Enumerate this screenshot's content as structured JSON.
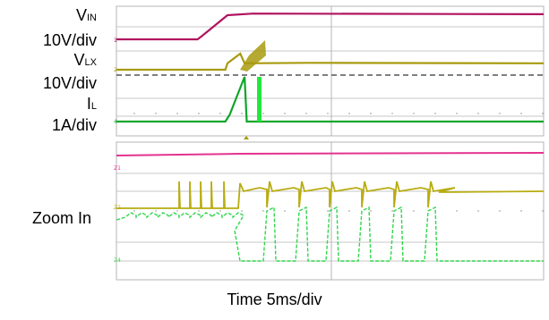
{
  "labels": {
    "vin_main": "V",
    "vin_sub": "IN",
    "vin_scale": "10V/div",
    "vlx_main": "V",
    "vlx_sub": "LX",
    "vlx_scale": "10V/div",
    "il_main": "I",
    "il_sub": "L",
    "il_scale": "1A/div",
    "zoom": "Zoom In",
    "time": "Time 5ms/div"
  },
  "colors": {
    "vin": "#b0135f",
    "vlx": "#a89a0e",
    "il": "#0fa52a",
    "zoom_vin": "#e3338f",
    "zoom_vlx": "#b8ac10",
    "zoom_il": "#2fd64a",
    "grid": "#b4b4b4",
    "ref_dash": "#333333"
  },
  "chart_data": [
    {
      "type": "line",
      "panel": "overview",
      "x_unit": "div (5ms/div)",
      "series": [
        {
          "name": "VIN",
          "scale": "10V/div",
          "points": [
            [
              0,
              0
            ],
            [
              1.9,
              0
            ],
            [
              2.0,
              0.1
            ],
            [
              2.6,
              0.75
            ],
            [
              3.2,
              0.8
            ],
            [
              10,
              0.78
            ]
          ]
        },
        {
          "name": "VLX",
          "scale": "10V/div",
          "points": [
            [
              0,
              0
            ],
            [
              2.55,
              0
            ],
            [
              2.6,
              0.3
            ],
            [
              2.9,
              0.75
            ],
            [
              3.0,
              0.3
            ],
            [
              4.5,
              0.32
            ],
            [
              10,
              0.3
            ]
          ]
        },
        {
          "name": "IL",
          "scale": "1A/div",
          "points": [
            [
              0,
              0
            ],
            [
              2.55,
              0
            ],
            [
              2.65,
              0.15
            ],
            [
              3.0,
              1.0
            ],
            [
              3.05,
              0
            ],
            [
              10,
              0
            ]
          ]
        }
      ]
    },
    {
      "type": "line",
      "panel": "zoom",
      "title": "Zoom In",
      "series": [
        {
          "name": "VIN",
          "points": [
            [
              0,
              0
            ],
            [
              2.6,
              0.05
            ],
            [
              10,
              0.05
            ]
          ]
        },
        {
          "name": "VLX",
          "points": [
            [
              0,
              0
            ],
            [
              2.6,
              0
            ],
            [
              2.65,
              0.4
            ],
            [
              7.3,
              0.3
            ],
            [
              10,
              0.3
            ]
          ]
        },
        {
          "name": "IL",
          "points": [
            [
              0,
              0.8
            ],
            [
              2.6,
              1.0
            ],
            [
              2.65,
              0
            ],
            [
              7.3,
              0
            ],
            [
              10,
              0
            ]
          ]
        }
      ]
    }
  ]
}
